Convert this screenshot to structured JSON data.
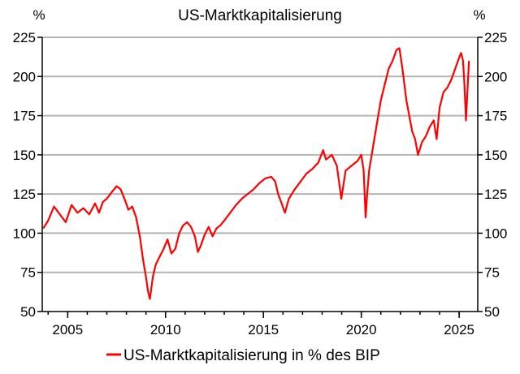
{
  "chart_data": {
    "type": "line",
    "title": "US-Marktkapitalisierung",
    "ylabel_left": "%",
    "ylabel_right": "%",
    "ylim": [
      50,
      225
    ],
    "yticks": [
      50,
      75,
      100,
      125,
      150,
      175,
      200,
      225
    ],
    "xlim": [
      2003.7,
      2025.95
    ],
    "xticks": [
      2005,
      2010,
      2015,
      2020,
      2025
    ],
    "grid": true,
    "legend_position": "bottom",
    "colors": {
      "series": "#ff0000",
      "grid": "#b4b4b4",
      "axis": "#000000"
    },
    "series": [
      {
        "name": "US-Marktkapitalisierung in % des BIP",
        "x": [
          2003.75,
          2004.0,
          2004.3,
          2004.6,
          2004.9,
          2005.2,
          2005.5,
          2005.8,
          2006.1,
          2006.4,
          2006.6,
          2006.8,
          2007.0,
          2007.3,
          2007.5,
          2007.7,
          2007.9,
          2008.1,
          2008.3,
          2008.5,
          2008.7,
          2008.85,
          2009.0,
          2009.1,
          2009.2,
          2009.35,
          2009.5,
          2009.7,
          2009.9,
          2010.1,
          2010.3,
          2010.5,
          2010.7,
          2010.9,
          2011.1,
          2011.3,
          2011.5,
          2011.65,
          2011.8,
          2012.0,
          2012.2,
          2012.4,
          2012.6,
          2012.8,
          2013.0,
          2013.3,
          2013.6,
          2013.9,
          2014.2,
          2014.5,
          2014.8,
          2015.1,
          2015.4,
          2015.6,
          2015.75,
          2015.9,
          2016.1,
          2016.3,
          2016.6,
          2016.9,
          2017.2,
          2017.5,
          2017.8,
          2018.05,
          2018.2,
          2018.5,
          2018.75,
          2018.98,
          2019.2,
          2019.5,
          2019.8,
          2020.0,
          2020.12,
          2020.22,
          2020.3,
          2020.4,
          2020.6,
          2020.8,
          2021.0,
          2021.2,
          2021.4,
          2021.6,
          2021.8,
          2021.95,
          2022.1,
          2022.3,
          2022.45,
          2022.6,
          2022.75,
          2022.9,
          2023.1,
          2023.3,
          2023.5,
          2023.7,
          2023.85,
          2024.0,
          2024.2,
          2024.4,
          2024.6,
          2024.8,
          2025.0,
          2025.1,
          2025.2,
          2025.27,
          2025.35,
          2025.5
        ],
        "values": [
          103,
          108,
          117,
          112,
          107,
          118,
          113,
          116,
          112,
          119,
          113,
          120,
          122,
          127,
          130,
          128,
          122,
          115,
          117,
          110,
          97,
          83,
          72,
          63,
          58,
          72,
          80,
          85,
          90,
          96,
          87,
          90,
          100,
          105,
          107,
          104,
          98,
          88,
          92,
          99,
          104,
          98,
          103,
          105,
          108,
          113,
          118,
          122,
          125,
          128,
          132,
          135,
          136,
          133,
          125,
          120,
          113,
          122,
          128,
          133,
          138,
          141,
          145,
          153,
          147,
          150,
          143,
          122,
          140,
          143,
          146,
          150,
          140,
          110,
          125,
          140,
          155,
          170,
          185,
          195,
          205,
          210,
          217,
          218,
          205,
          185,
          175,
          165,
          160,
          150,
          158,
          162,
          168,
          172,
          160,
          180,
          190,
          193,
          198,
          205,
          212,
          215,
          210,
          195,
          172,
          210
        ]
      }
    ]
  }
}
